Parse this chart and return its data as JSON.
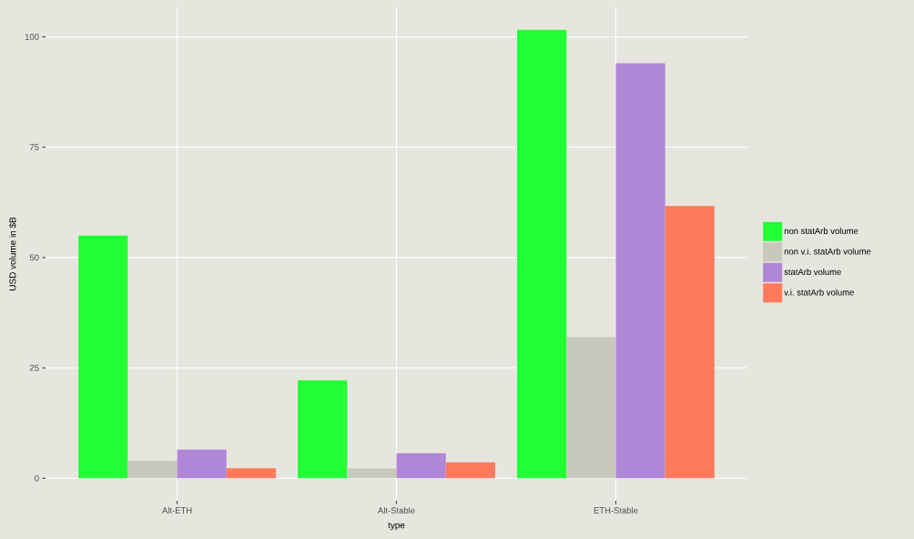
{
  "chart_data": {
    "type": "bar",
    "xlabel": "type",
    "ylabel": "USD volume in $B",
    "categories": [
      "Alt-ETH",
      "Alt-Stable",
      "ETH-Stable"
    ],
    "series": [
      {
        "name": "non statArb volume",
        "color": "#22ff35",
        "values": [
          55.0,
          22.2,
          101.6
        ]
      },
      {
        "name": "non v.i. statArb volume",
        "color": "#c8c8bc",
        "values": [
          4.0,
          2.2,
          32.0
        ]
      },
      {
        "name": "statArb volume",
        "color": "#b087d6",
        "values": [
          6.5,
          5.7,
          94.0
        ]
      },
      {
        "name": "v.i. statArb volume",
        "color": "#ff7b5c",
        "values": [
          2.3,
          3.6,
          61.7
        ]
      }
    ],
    "ylim": [
      -5.1,
      106.7
    ],
    "yticks": [
      0,
      25,
      50,
      75,
      100
    ],
    "grid": true,
    "legend": "right"
  }
}
